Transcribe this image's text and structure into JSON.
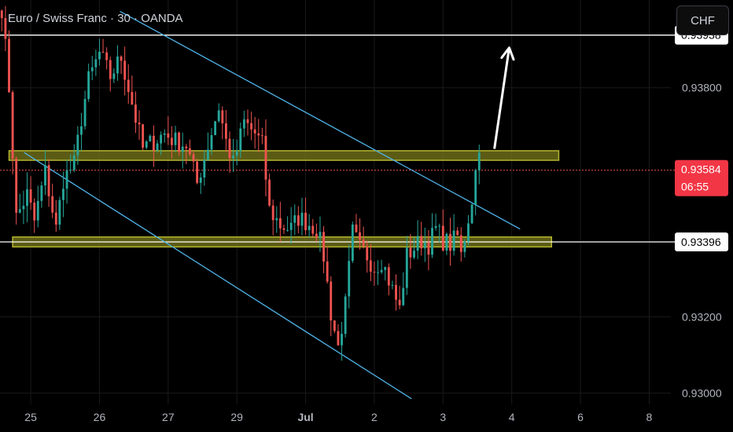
{
  "header": {
    "symbol_title": "Euro / Swiss Franc · 30 · OANDA",
    "currency_button": "CHF"
  },
  "colors": {
    "background": "#000000",
    "grid": "#1a1a1a",
    "candle_up": "#26a69a",
    "candle_down": "#ef5350",
    "channel": "#4fb3e8",
    "zone_fill": "#7a7a1c",
    "zone_border": "#b5b52e",
    "level_line": "#ffffff",
    "current_price_line": "#ef5350",
    "price_badge": "#f23645",
    "axis_text": "#b2b5be"
  },
  "chart_data": {
    "type": "candlestick",
    "title": "Euro / Swiss Franc · 30 · OANDA",
    "y_range": [
      0.9297,
      0.9403
    ],
    "y_ticks": [
      "0.93800",
      "0.93200",
      "0.93000"
    ],
    "y_tick_values": [
      0.938,
      0.932,
      0.93
    ],
    "x_ticks": [
      "25",
      "26",
      "27",
      "29",
      "Jul",
      "2",
      "3",
      "4",
      "6",
      "8"
    ],
    "x_tick_index": [
      8,
      27,
      46,
      65,
      84,
      103,
      122,
      141,
      160,
      179
    ],
    "index_range": [
      -0.5,
      185
    ],
    "levels": [
      {
        "label": "0.93938",
        "value": 0.93938
      },
      {
        "label": "0.93396",
        "value": 0.93396
      }
    ],
    "current_price": {
      "label": "0.93584",
      "countdown": "06:55",
      "value": 0.93584
    },
    "zones": [
      {
        "x_start_index": 2,
        "x_end_index": 154,
        "low": 0.9361,
        "high": 0.93635
      },
      {
        "x_start_index": 3,
        "x_end_index": 152,
        "low": 0.93383,
        "high": 0.93409
      }
    ],
    "channel_lines": [
      {
        "x1": 32.7,
        "y1": 0.94,
        "x2": 143.3,
        "y2": 0.9343
      },
      {
        "x1": 6.2,
        "y1": 0.9363,
        "x2": 113.3,
        "y2": 0.92985
      }
    ],
    "arrow": {
      "x1": 136.2,
      "y1": 0.9364,
      "x2": 140.3,
      "y2": 0.93905
    },
    "path_anchors": [
      [
        0,
        0.9401
      ],
      [
        2,
        0.938
      ],
      [
        4,
        0.9346
      ],
      [
        7,
        0.9352
      ],
      [
        9,
        0.9345
      ],
      [
        12,
        0.9358
      ],
      [
        15,
        0.9343
      ],
      [
        17,
        0.9356
      ],
      [
        20,
        0.936
      ],
      [
        22,
        0.9372
      ],
      [
        24,
        0.9382
      ],
      [
        27,
        0.9389
      ],
      [
        30,
        0.9383
      ],
      [
        33,
        0.9388
      ],
      [
        36,
        0.9376
      ],
      [
        39,
        0.9364
      ],
      [
        42,
        0.9366
      ],
      [
        45,
        0.9368
      ],
      [
        48,
        0.9366
      ],
      [
        51,
        0.9365
      ],
      [
        54,
        0.9355
      ],
      [
        57,
        0.9365
      ],
      [
        60,
        0.9375
      ],
      [
        62,
        0.9366
      ],
      [
        64,
        0.936
      ],
      [
        67,
        0.9371
      ],
      [
        70,
        0.9368
      ],
      [
        72,
        0.9365
      ],
      [
        74,
        0.9348
      ],
      [
        77,
        0.9344
      ],
      [
        80,
        0.9343
      ],
      [
        82,
        0.9346
      ],
      [
        84,
        0.9345
      ],
      [
        87,
        0.9343
      ],
      [
        89,
        0.9336
      ],
      [
        91,
        0.9321
      ],
      [
        93,
        0.9312
      ],
      [
        95,
        0.9323
      ],
      [
        97,
        0.9342
      ],
      [
        99,
        0.9338
      ],
      [
        101,
        0.9336
      ],
      [
        103,
        0.9333
      ],
      [
        105,
        0.9335
      ],
      [
        108,
        0.9327
      ],
      [
        110,
        0.9322
      ],
      [
        112,
        0.9336
      ],
      [
        114,
        0.9338
      ],
      [
        116,
        0.934
      ],
      [
        118,
        0.9339
      ],
      [
        120,
        0.9343
      ],
      [
        122,
        0.934
      ],
      [
        124,
        0.9339
      ],
      [
        126,
        0.9341
      ],
      [
        127,
        0.9336
      ],
      [
        129,
        0.9346
      ],
      [
        130,
        0.9351
      ],
      [
        131,
        0.9358
      ],
      [
        132,
        0.9363
      ]
    ]
  }
}
